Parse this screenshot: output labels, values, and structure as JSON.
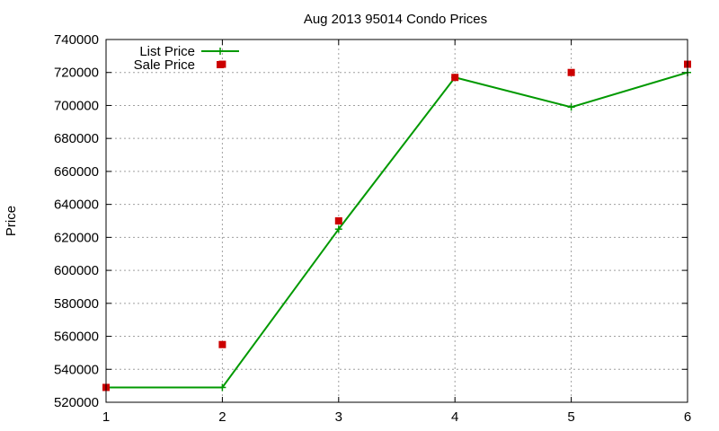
{
  "chart_data": {
    "type": "line",
    "title": "Aug 2013 95014 Condo Prices",
    "xlabel": "",
    "ylabel": "Price",
    "xlim": [
      1,
      6
    ],
    "ylim": [
      520000,
      740000
    ],
    "xticks": [
      1,
      2,
      3,
      4,
      5,
      6
    ],
    "xtick_labels": [
      "1",
      "2",
      "3",
      "4",
      "5",
      "6"
    ],
    "yticks": [
      520000,
      540000,
      560000,
      580000,
      600000,
      620000,
      640000,
      660000,
      680000,
      700000,
      720000,
      740000
    ],
    "ytick_labels": [
      "520000",
      "540000",
      "560000",
      "580000",
      "600000",
      "620000",
      "640000",
      "660000",
      "680000",
      "700000",
      "720000",
      "740000"
    ],
    "grid": true,
    "legend_position": "top-left",
    "series": [
      {
        "name": "List Price",
        "style": "linespoints",
        "marker": "plus",
        "color": "#009900",
        "x": [
          1,
          2,
          3,
          4,
          5,
          6
        ],
        "values": [
          529000,
          529000,
          625000,
          717000,
          699000,
          720000
        ]
      },
      {
        "name": "Sale Price",
        "style": "points",
        "marker": "square",
        "color": "#cc0000",
        "x": [
          1,
          2,
          2,
          3,
          4,
          5,
          6
        ],
        "values": [
          529000,
          555000,
          725000,
          630000,
          717000,
          720000,
          725000
        ]
      }
    ]
  }
}
